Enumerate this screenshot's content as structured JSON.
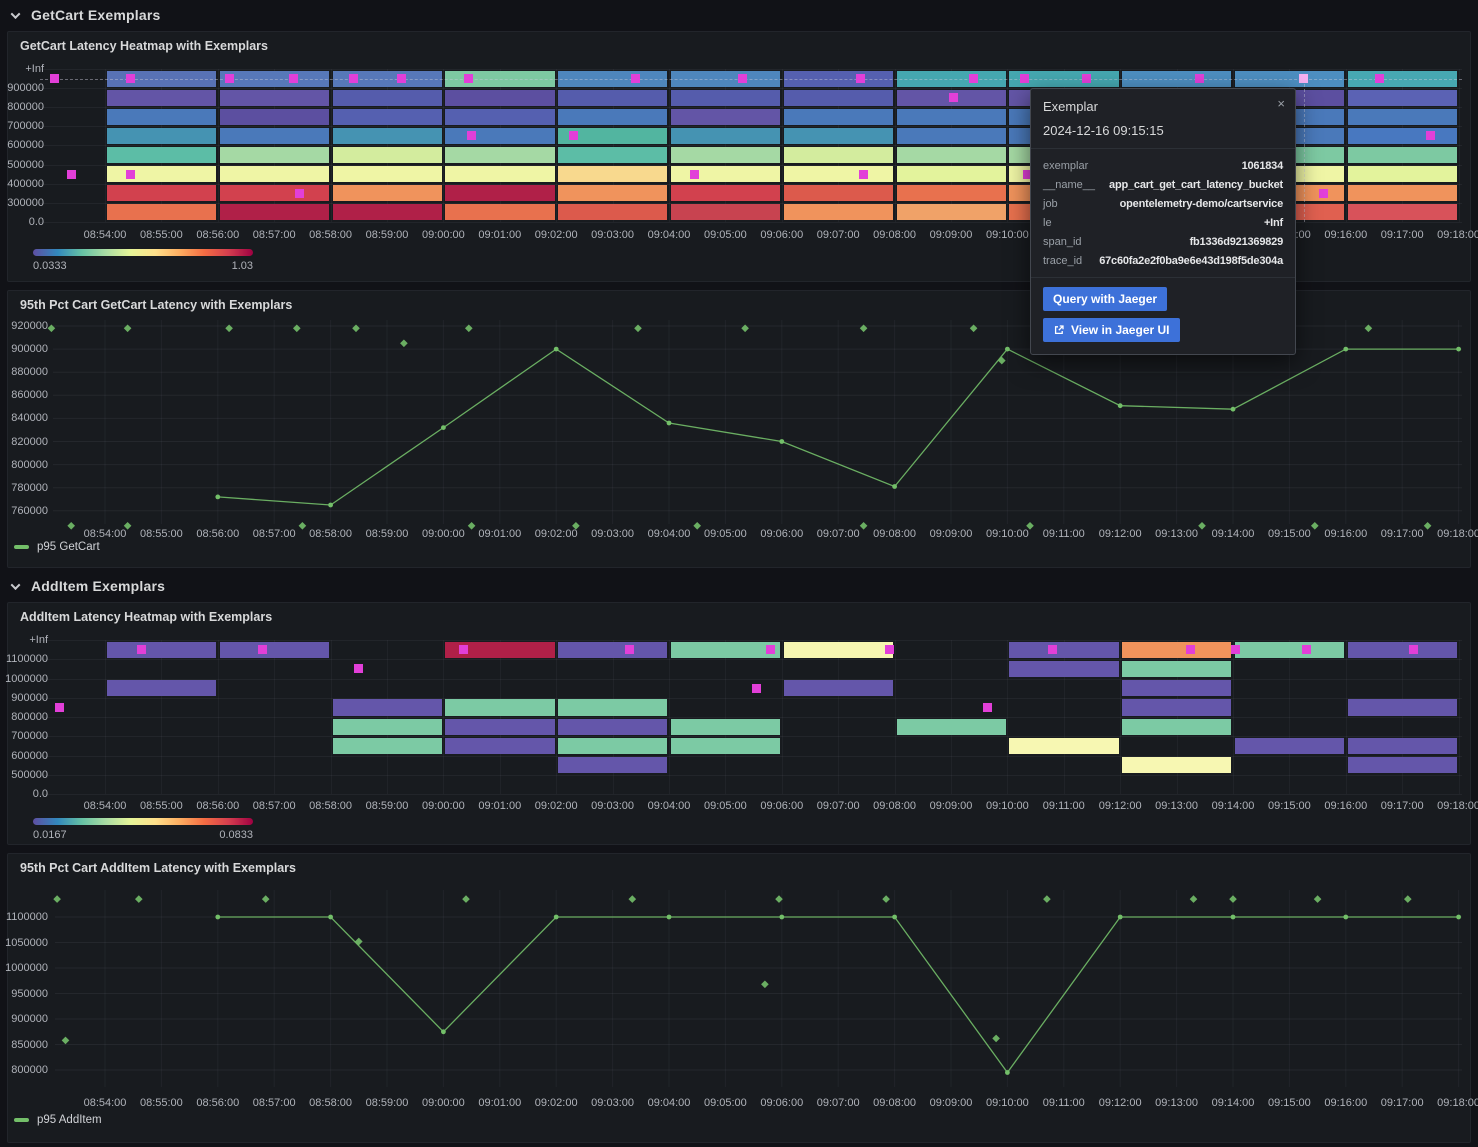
{
  "page": {
    "bg": "#111217",
    "panel_bg": "#181b1f",
    "accent_green": "#73bf69",
    "exemplar_color": "#e23fd8",
    "selected_exemplar_color": "#f5b0f0"
  },
  "rows": [
    {
      "title": "GetCart Exemplars"
    },
    {
      "title": "AddItem Exemplars"
    }
  ],
  "x_axis_labels": [
    "08:54:00",
    "08:55:00",
    "08:56:00",
    "08:57:00",
    "08:58:00",
    "08:59:00",
    "09:00:00",
    "09:01:00",
    "09:02:00",
    "09:03:00",
    "09:04:00",
    "09:05:00",
    "09:06:00",
    "09:07:00",
    "09:08:00",
    "09:09:00",
    "09:10:00",
    "09:11:00",
    "09:12:00",
    "09:13:00",
    "09:14:00",
    "09:15:00",
    "09:16:00",
    "09:17:00",
    "09:18:00"
  ],
  "tooltip": {
    "title": "Exemplar",
    "timestamp": "2024-12-16 09:15:15",
    "close_icon": "×",
    "fields": [
      {
        "key": "exemplar",
        "value": "1061834"
      },
      {
        "key": "__name__",
        "value": "app_cart_get_cart_latency_bucket"
      },
      {
        "key": "job",
        "value": "opentelemetry-demo/cartservice"
      },
      {
        "key": "le",
        "value": "+Inf"
      },
      {
        "key": "span_id",
        "value": "fb1336d921369829"
      },
      {
        "key": "trace_id",
        "value": "67c60fa2e2f0ba9e6e43d198f5de304a"
      }
    ],
    "buttons": [
      {
        "label": "Query with Jaeger"
      },
      {
        "label": "View in Jaeger UI"
      }
    ]
  },
  "chart_data": [
    {
      "type": "heatmap",
      "title": "GetCart Latency Heatmap with Exemplars",
      "y_tick_labels": [
        "+Inf",
        "900000",
        "800000",
        "700000",
        "600000",
        "500000",
        "400000",
        "300000",
        "0.0"
      ],
      "bucket_columns": [
        "08:54:00",
        "08:56:00",
        "08:58:00",
        "09:00:00",
        "09:02:00",
        "09:04:00",
        "09:06:00",
        "09:08:00",
        "09:10:00",
        "09:12:00",
        "09:14:00",
        "09:16:00"
      ],
      "column_duration_min": 2,
      "grid": [
        [
          "#5872b6",
          "#6355a6",
          "#4a79ba",
          "#4593b2",
          "#5cbda6",
          "#eff5a5",
          "#d2414e",
          "#e8714e"
        ],
        [
          "#5778b9",
          "#6355a6",
          "#5c4fa0",
          "#4a79ba",
          "#a5d9a4",
          "#eff5a5",
          "#d2414e",
          "#b02048"
        ],
        [
          "#5778b9",
          "#555cac",
          "#5560b0",
          "#4593b2",
          "#d3ec9e",
          "#eff5a5",
          "#f0935c",
          "#b02048"
        ],
        [
          "#7dc9a2",
          "#5c4fa0",
          "#5560b0",
          "#4a79ba",
          "#a5d9a4",
          "#eff5a5",
          "#b02048",
          "#e8714e"
        ],
        [
          "#4e86bc",
          "#555cac",
          "#4a79ba",
          "#52b5a0",
          "#5cbda6",
          "#f8d98e",
          "#f0935c",
          "#dc5a4c"
        ],
        [
          "#4e86bc",
          "#555cac",
          "#6355a6",
          "#4593b2",
          "#a5d9a4",
          "#eff5a5",
          "#d2414e",
          "#c84350"
        ],
        [
          "#5560b0",
          "#555cac",
          "#4a79ba",
          "#4593b2",
          "#d3ec9e",
          "#eff5a5",
          "#dc5a4c",
          "#f0935c"
        ],
        [
          "#45a7b0",
          "#6355a6",
          "#4a79ba",
          "#4a79ba",
          "#a5d9a4",
          "#e3f39c",
          "#e8714e",
          "#f0a268"
        ],
        [
          "#45a7b0",
          "#6355a6",
          "#4a79ba",
          "#4a79ba",
          "#a5d9a4",
          "#eff5a5",
          "#f0935c",
          "#e8714e"
        ],
        [
          "#4d8ec0",
          "#6355a6",
          "#4a79ba",
          "#4a79ba",
          "#a5d9a4",
          "#eff5a5",
          "#f0935c",
          "#d2414e"
        ],
        [
          "#4d8ec0",
          "#5c4fa0",
          "#4a79ba",
          "#4a79ba",
          "#7dc9a2",
          "#eff5a5",
          "#f0935c",
          "#e06050"
        ],
        [
          "#47a8b2",
          "#5b62b4",
          "#4a79ba",
          "#4878c0",
          "#7dc9a2",
          "#e3f39c",
          "#f0935c",
          "#d8525a"
        ]
      ],
      "exemplars": [
        {
          "time": "08:53:06",
          "row": 0
        },
        {
          "time": "08:53:24",
          "row": 5
        },
        {
          "time": "08:54:27",
          "row": 0
        },
        {
          "time": "08:54:27",
          "row": 5
        },
        {
          "time": "08:56:12",
          "row": 0
        },
        {
          "time": "08:57:21",
          "row": 0
        },
        {
          "time": "08:57:27",
          "row": 6
        },
        {
          "time": "08:58:24",
          "row": 0
        },
        {
          "time": "08:59:15",
          "row": 0
        },
        {
          "time": "09:00:27",
          "row": 0
        },
        {
          "time": "09:00:30",
          "row": 3
        },
        {
          "time": "09:02:18",
          "row": 3
        },
        {
          "time": "09:03:24",
          "row": 0
        },
        {
          "time": "09:04:27",
          "row": 5
        },
        {
          "time": "09:05:18",
          "row": 0
        },
        {
          "time": "09:07:24",
          "row": 0
        },
        {
          "time": "09:07:27",
          "row": 5
        },
        {
          "time": "09:09:03",
          "row": 1
        },
        {
          "time": "09:09:24",
          "row": 0
        },
        {
          "time": "09:10:18",
          "row": 0
        },
        {
          "time": "09:10:21",
          "row": 5
        },
        {
          "time": "09:11:24",
          "row": 0
        },
        {
          "time": "09:13:24",
          "row": 0
        },
        {
          "time": "09:15:36",
          "row": 6
        },
        {
          "time": "09:16:36",
          "row": 0
        },
        {
          "time": "09:17:30",
          "row": 3
        }
      ],
      "selected_exemplar": {
        "time": "09:15:15",
        "row": 0
      },
      "colorbar": {
        "min": "0.0333",
        "max": "1.03",
        "gradient": [
          "#5e4fa2",
          "#3288bd",
          "#66c2a5",
          "#abdda4",
          "#e6f598",
          "#fee08b",
          "#fdae61",
          "#f46d43",
          "#d53e4f",
          "#9e0142"
        ]
      }
    },
    {
      "type": "line",
      "title": "95th Pct Cart GetCart Latency with Exemplars",
      "legend": "p95 GetCart",
      "y_ticks": [
        920000,
        900000,
        880000,
        860000,
        840000,
        820000,
        800000,
        780000,
        760000
      ],
      "series": [
        {
          "name": "p95 GetCart",
          "color": "#73bf69",
          "points": [
            [
              "08:56:00",
              772000
            ],
            [
              "08:58:00",
              765000
            ],
            [
              "09:00:00",
              832000
            ],
            [
              "09:02:00",
              900000
            ],
            [
              "09:04:00",
              836000
            ],
            [
              "09:06:00",
              820000
            ],
            [
              "09:08:00",
              781000
            ],
            [
              "09:10:00",
              900000
            ],
            [
              "09:12:00",
              851000
            ],
            [
              "09:14:00",
              848000
            ],
            [
              "09:16:00",
              900000
            ],
            [
              "09:18:00",
              900000
            ]
          ]
        }
      ],
      "exemplars": [
        [
          "08:53:03",
          918000
        ],
        [
          "08:54:24",
          918000
        ],
        [
          "08:56:12",
          918000
        ],
        [
          "08:57:24",
          918000
        ],
        [
          "08:58:27",
          918000
        ],
        [
          "09:00:27",
          918000
        ],
        [
          "09:03:27",
          918000
        ],
        [
          "09:05:21",
          918000
        ],
        [
          "09:07:27",
          918000
        ],
        [
          "09:09:24",
          918000
        ],
        [
          "09:16:24",
          918000
        ],
        [
          "08:59:18",
          905000
        ],
        [
          "09:09:54",
          890000
        ],
        [
          "08:53:24",
          747000
        ],
        [
          "08:54:24",
          747000
        ],
        [
          "08:57:30",
          747000
        ],
        [
          "09:00:30",
          747000
        ],
        [
          "09:02:21",
          747000
        ],
        [
          "09:04:30",
          747000
        ],
        [
          "09:07:27",
          747000
        ],
        [
          "09:10:24",
          747000
        ],
        [
          "09:13:27",
          747000
        ],
        [
          "09:15:27",
          747000
        ],
        [
          "09:17:27",
          747000
        ]
      ]
    },
    {
      "type": "heatmap",
      "title": "AddItem Latency Heatmap with Exemplars",
      "y_tick_labels": [
        "+Inf",
        "1100000",
        "1000000",
        "900000",
        "800000",
        "700000",
        "600000",
        "500000",
        "0.0"
      ],
      "bucket_columns": [
        "08:54:00",
        "08:56:00",
        "08:58:00",
        "09:00:00",
        "09:02:00",
        "09:04:00",
        "09:06:00",
        "09:08:00",
        "09:10:00",
        "09:12:00",
        "09:14:00",
        "09:16:00"
      ],
      "column_duration_min": 2,
      "grid": [
        [
          "#6456aa",
          null,
          "#6456aa",
          null,
          null,
          null,
          null,
          null
        ],
        [
          "#6456aa",
          null,
          null,
          null,
          null,
          null,
          null,
          null
        ],
        [
          null,
          null,
          null,
          "#6456aa",
          "#7ccaa4",
          "#7ccaa4",
          null,
          null
        ],
        [
          "#b02048",
          null,
          null,
          "#7ccaa4",
          "#6456aa",
          "#6456aa",
          null,
          null
        ],
        [
          "#6456aa",
          null,
          null,
          "#7ccaa4",
          "#6456aa",
          "#7ccaa4",
          "#6456aa",
          null
        ],
        [
          "#7ccaa4",
          null,
          null,
          null,
          "#7ccaa4",
          "#7ccaa4",
          null,
          null
        ],
        [
          "#f7f7b2",
          null,
          "#6456aa",
          null,
          null,
          null,
          null,
          null
        ],
        [
          null,
          null,
          null,
          null,
          "#7ccaa4",
          null,
          null,
          null
        ],
        [
          "#6456aa",
          "#6456aa",
          null,
          null,
          null,
          "#f7f7b2",
          null,
          null
        ],
        [
          "#f0935c",
          "#7ccaa4",
          "#6456aa",
          "#6456aa",
          "#7ccaa4",
          null,
          "#f7f7b2",
          null
        ],
        [
          "#7ccaa4",
          null,
          null,
          null,
          null,
          "#6456aa",
          null,
          null
        ],
        [
          "#6456aa",
          null,
          null,
          "#6456aa",
          null,
          "#6456aa",
          "#6456aa",
          null
        ]
      ],
      "exemplars": [
        {
          "time": "08:53:12",
          "row": 3
        },
        {
          "time": "08:54:39",
          "row": 0
        },
        {
          "time": "08:56:48",
          "row": 0
        },
        {
          "time": "08:58:30",
          "row": 1
        },
        {
          "time": "09:00:21",
          "row": 0
        },
        {
          "time": "09:03:18",
          "row": 0
        },
        {
          "time": "09:05:33",
          "row": 2
        },
        {
          "time": "09:05:48",
          "row": 0
        },
        {
          "time": "09:07:54",
          "row": 0
        },
        {
          "time": "09:09:39",
          "row": 3
        },
        {
          "time": "09:10:48",
          "row": 0
        },
        {
          "time": "09:13:15",
          "row": 0
        },
        {
          "time": "09:14:03",
          "row": 0
        },
        {
          "time": "09:15:18",
          "row": 0
        },
        {
          "time": "09:17:12",
          "row": 0
        }
      ],
      "selected_exemplar": null,
      "colorbar": {
        "min": "0.0167",
        "max": "0.0833",
        "gradient": [
          "#5e4fa2",
          "#3288bd",
          "#66c2a5",
          "#abdda4",
          "#e6f598",
          "#fee08b",
          "#fdae61",
          "#f46d43",
          "#d53e4f",
          "#9e0142"
        ]
      }
    },
    {
      "type": "line",
      "title": "95th Pct Cart AddItem Latency with Exemplars",
      "legend": "p95 AddItem",
      "y_ticks": [
        1100000,
        1050000,
        1000000,
        950000,
        900000,
        850000,
        800000
      ],
      "series": [
        {
          "name": "p95 AddItem",
          "color": "#73bf69",
          "points": [
            [
              "08:56:00",
              1100000
            ],
            [
              "08:58:00",
              1100000
            ],
            [
              "09:00:00",
              875000
            ],
            [
              "09:02:00",
              1100000
            ],
            [
              "09:04:00",
              1100000
            ],
            [
              "09:06:00",
              1100000
            ],
            [
              "09:08:00",
              1100000
            ],
            [
              "09:10:00",
              795000
            ],
            [
              "09:12:00",
              1100000
            ],
            [
              "09:14:00",
              1100000
            ],
            [
              "09:16:00",
              1100000
            ],
            [
              "09:18:00",
              1100000
            ]
          ]
        }
      ],
      "exemplars": [
        [
          "08:53:09",
          1135000
        ],
        [
          "08:54:36",
          1135000
        ],
        [
          "08:56:51",
          1135000
        ],
        [
          "09:00:24",
          1135000
        ],
        [
          "09:03:21",
          1135000
        ],
        [
          "09:05:57",
          1135000
        ],
        [
          "09:07:51",
          1135000
        ],
        [
          "09:10:42",
          1135000
        ],
        [
          "09:13:18",
          1135000
        ],
        [
          "09:14:00",
          1135000
        ],
        [
          "09:15:30",
          1135000
        ],
        [
          "09:17:06",
          1135000
        ],
        [
          "08:53:18",
          858000
        ],
        [
          "08:58:30",
          1052000
        ],
        [
          "09:05:42",
          968000
        ],
        [
          "09:09:48",
          862000
        ]
      ]
    }
  ]
}
